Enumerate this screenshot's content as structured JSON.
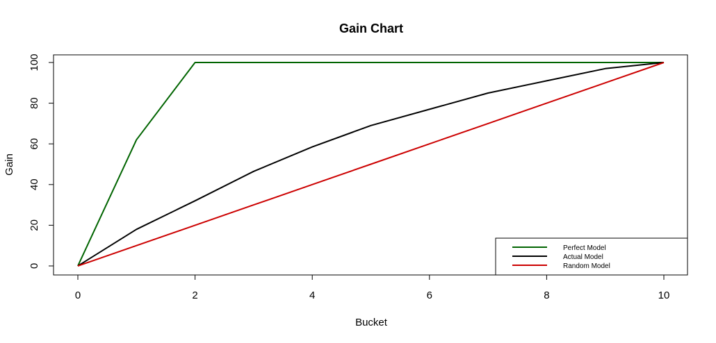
{
  "chart_data": {
    "type": "line",
    "title": "Gain Chart",
    "xlabel": "Bucket",
    "ylabel": "Gain",
    "xlim": [
      0,
      10
    ],
    "ylim": [
      0,
      100
    ],
    "xticks": [
      "0",
      "2",
      "4",
      "6",
      "8",
      "10"
    ],
    "yticks": [
      "0",
      "20",
      "40",
      "60",
      "80",
      "100"
    ],
    "grid": false,
    "legend_position": "bottom-right",
    "series": [
      {
        "name": "Perfect Model",
        "color": "#006400",
        "x": [
          0,
          1,
          2,
          3,
          4,
          5,
          6,
          7,
          8,
          9,
          10
        ],
        "y": [
          0,
          62,
          100,
          100,
          100,
          100,
          100,
          100,
          100,
          100,
          100
        ]
      },
      {
        "name": "Actual Model",
        "color": "#000000",
        "x": [
          0,
          1,
          2,
          3,
          4,
          5,
          6,
          7,
          8,
          9,
          10
        ],
        "y": [
          0,
          18,
          32,
          46.5,
          58.5,
          69,
          77,
          85,
          91,
          97,
          100
        ]
      },
      {
        "name": "Random Model",
        "color": "#cc0000",
        "x": [
          0,
          1,
          2,
          3,
          4,
          5,
          6,
          7,
          8,
          9,
          10
        ],
        "y": [
          0,
          10,
          20,
          30,
          40,
          50,
          60,
          70,
          80,
          90,
          100
        ]
      }
    ]
  }
}
